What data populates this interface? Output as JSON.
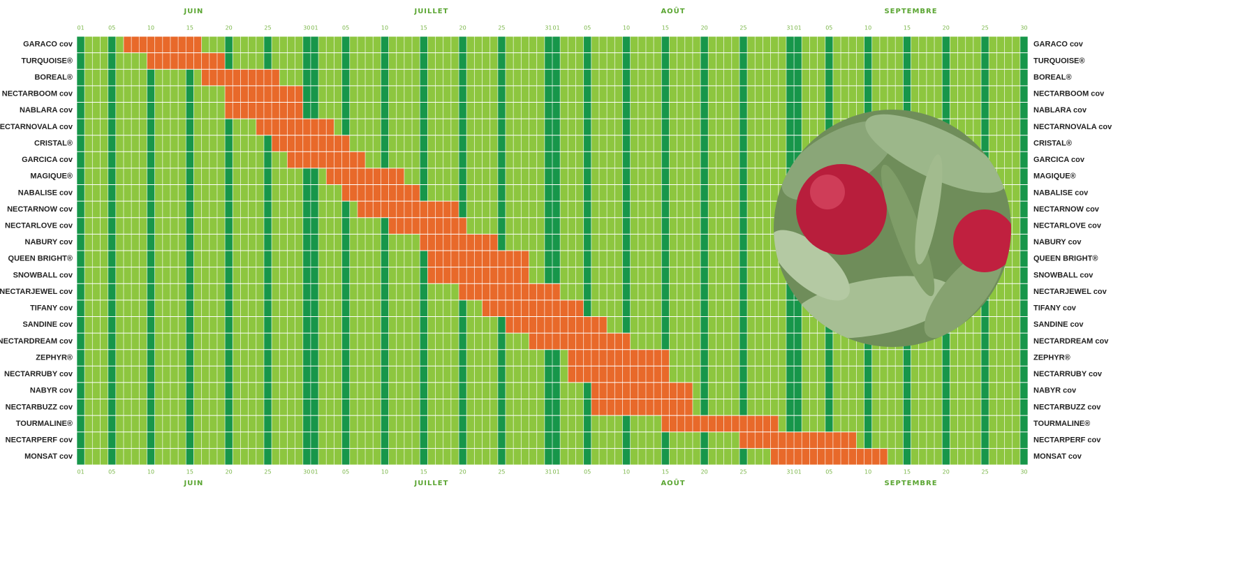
{
  "chart_data": {
    "type": "gantt",
    "months": [
      "JUIN",
      "JUILLET",
      "AOÛT",
      "SEPTEMBRE"
    ],
    "categories": [
      "GARACO cov",
      "TURQUOISE®",
      "BOREAL®",
      "NECTARBOOM cov",
      "NABLARA cov",
      "NECTARNOVALA cov",
      "CRISTAL®",
      "GARCICA cov",
      "MAGIQUE®",
      "NABALISE cov",
      "NECTARNOW cov",
      "NECTARLOVE cov",
      "NABURY cov",
      "QUEEN BRIGHT®",
      "SNOWBALL cov",
      "NECTARJEWEL cov",
      "TIFANY cov",
      "SANDINE cov",
      "NECTARDREAM cov",
      "ZEPHYR®",
      "NECTARRUBY cov",
      "NABYR cov",
      "NECTARBUZZ cov",
      "TOURMALINE®",
      "NECTARPERF cov",
      "MONSAT cov"
    ],
    "start": [
      7,
      10,
      17,
      20,
      20,
      24,
      26,
      28,
      33,
      35,
      37,
      41,
      45,
      46,
      46,
      50,
      53,
      56,
      59,
      64,
      64,
      67,
      67,
      76,
      86,
      90
    ],
    "end": [
      16,
      19,
      26,
      29,
      29,
      33,
      35,
      37,
      42,
      44,
      49,
      50,
      54,
      58,
      58,
      62,
      65,
      68,
      71,
      76,
      76,
      79,
      79,
      90,
      100,
      104
    ],
    "color": "#e8692a",
    "xlim": [
      0,
      122
    ],
    "xticks": [
      {
        "value": 1,
        "label": "01"
      },
      {
        "value": 5,
        "label": "05"
      },
      10,
      15,
      20,
      25,
      30,
      {
        "value": 31,
        "label": "01"
      },
      {
        "value": 35,
        "label": "05"
      },
      {
        "value": 40,
        "label": "10"
      },
      {
        "value": 45,
        "label": "15"
      },
      {
        "value": 50,
        "label": "20"
      },
      {
        "value": 55,
        "label": "25"
      },
      {
        "value": 61,
        "label": "31"
      },
      {
        "value": 62,
        "label": "01"
      },
      {
        "value": 66,
        "label": "05"
      },
      {
        "value": 71,
        "label": "10"
      },
      {
        "value": 76,
        "label": "15"
      },
      {
        "value": 81,
        "label": "20"
      },
      {
        "value": 86,
        "label": "25"
      },
      {
        "value": 92,
        "label": "31"
      },
      {
        "value": 93,
        "label": "01"
      },
      {
        "value": 97,
        "label": "05"
      },
      {
        "value": 102,
        "label": "10"
      },
      {
        "value": 107,
        "label": "15"
      },
      {
        "value": 112,
        "label": "20"
      },
      {
        "value": 117,
        "label": "25"
      },
      {
        "value": 122,
        "label": "30"
      }
    ]
  }
}
